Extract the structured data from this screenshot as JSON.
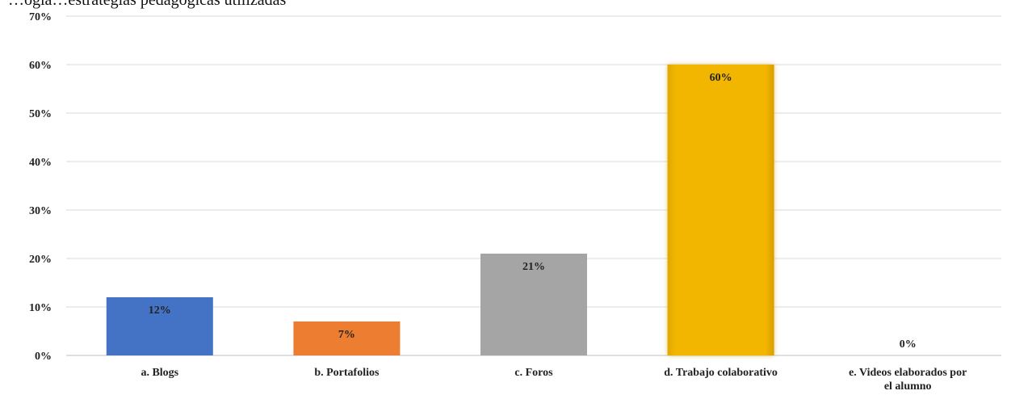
{
  "caption_fragment": "…ogía…estrategias pedagógicas utilizadas",
  "chart_data": {
    "type": "bar",
    "categories": [
      "a. Blogs",
      "b. Portafolios",
      "c. Foros",
      "d. Trabajo colaborativo",
      "e. Videos elaborados por el alumno"
    ],
    "category_lines": [
      [
        "a. Blogs"
      ],
      [
        "b. Portafolios"
      ],
      [
        "c. Foros"
      ],
      [
        "d. Trabajo colaborativo"
      ],
      [
        "e. Videos elaborados por",
        "el alumno"
      ]
    ],
    "values": [
      12,
      7,
      21,
      60,
      0
    ],
    "data_labels": [
      "12%",
      "7%",
      "21%",
      "60%",
      "0%"
    ],
    "colors": [
      "#4472C4",
      "#ED7D31",
      "#A5A5A5",
      "#F2B600",
      "#5B9BD5"
    ],
    "highlight_index": 3,
    "ylim": [
      0,
      70
    ],
    "yticks": [
      0,
      10,
      20,
      30,
      40,
      50,
      60,
      70
    ],
    "ytick_labels": [
      "0%",
      "10%",
      "20%",
      "30%",
      "40%",
      "50%",
      "60%",
      "70%"
    ],
    "grid": true,
    "title": "",
    "xlabel": "",
    "ylabel": ""
  }
}
